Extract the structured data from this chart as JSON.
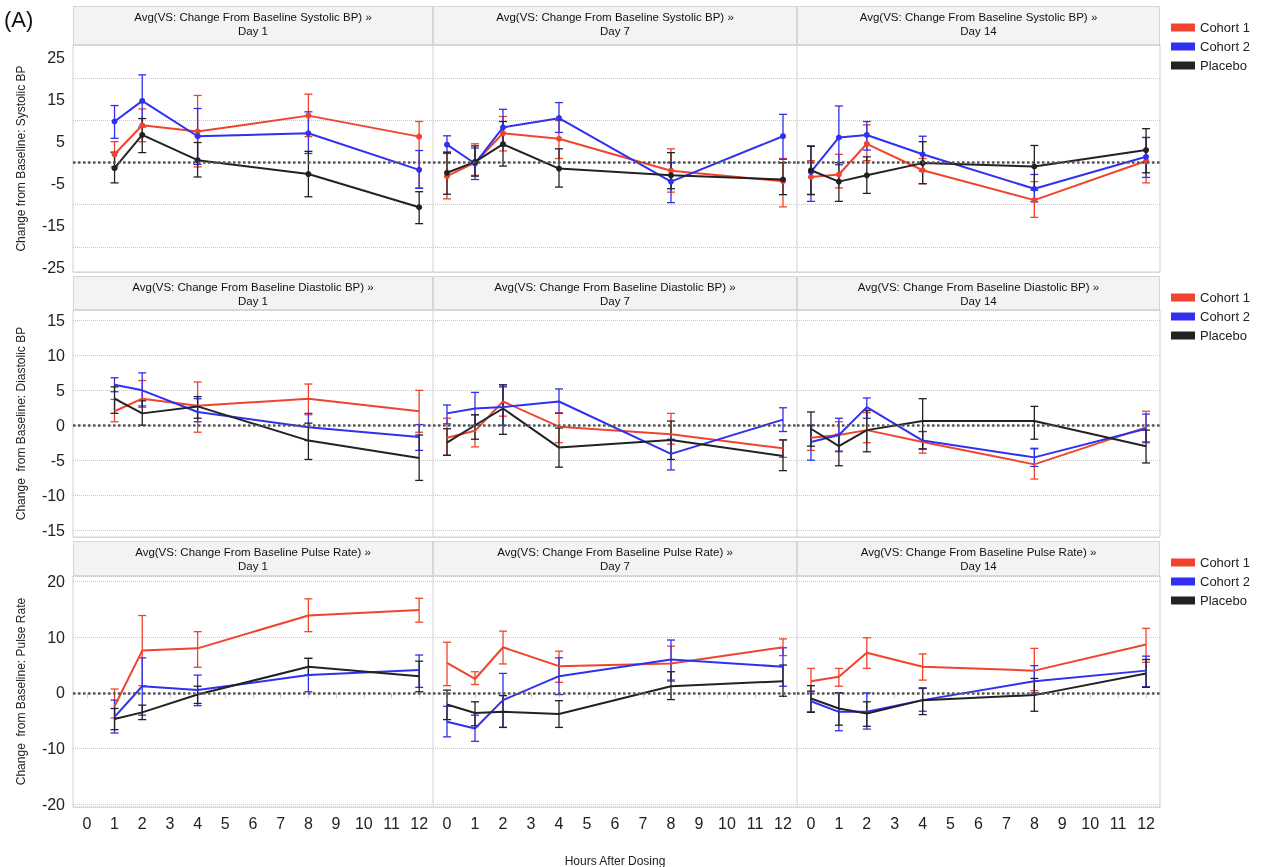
{
  "chart_data": [
    {
      "type": "line",
      "title": "Avg(VS: Change From Baseline Systolic BP) »",
      "subtitle": "Day 1",
      "ylabel": "Change from Baseline: Systolic BP",
      "annotations": [
        "(A)"
      ],
      "x": [
        1,
        2,
        4,
        8,
        12
      ],
      "xlim": [
        -0.5,
        12.5
      ],
      "xticks": [
        0,
        1,
        2,
        3,
        4,
        5,
        6,
        7,
        8,
        9,
        10,
        11,
        12
      ],
      "ylim": [
        -26,
        28
      ],
      "yticks": [
        -25,
        -15,
        -5,
        5,
        15,
        25
      ],
      "grid": "y",
      "marker": "circle",
      "tick_labels": "y",
      "legend": false,
      "ref_lines": [
        {
          "axis": "y",
          "value": 0,
          "line_style": "dotted",
          "color": "#555555"
        }
      ],
      "series": [
        {
          "color": "#f0442c",
          "values": [
            2,
            8.9,
            7.4,
            11.2,
            6.2
          ],
          "errors": [
            [
              -1,
              5
            ],
            [
              5,
              12.8
            ],
            [
              -1,
              16
            ],
            [
              6.2,
              16.3
            ],
            [
              -6,
              9.8
            ]
          ]
        },
        {
          "color": "#3030f0",
          "values": [
            9.8,
            14.7,
            6.3,
            7.0,
            -1.7
          ],
          "errors": [
            [
              5.8,
              13.6
            ],
            [
              8.5,
              20.9
            ],
            [
              -0.4,
              12.9
            ],
            [
              2.2,
              12.1
            ],
            [
              -6.1,
              2.9
            ]
          ]
        },
        {
          "color": "#222222",
          "values": [
            -1.3,
            6.6,
            0.6,
            -2.7,
            -10.6
          ],
          "errors": [
            [
              -4.8,
              2.5
            ],
            [
              2.4,
              10.5
            ],
            [
              -3.4,
              4.8
            ],
            [
              -8.1,
              2.7
            ],
            [
              -14.5,
              -6.9
            ]
          ]
        }
      ]
    },
    {
      "type": "line",
      "title": "Avg(VS: Change From Baseline Systolic BP) »",
      "subtitle": "Day 7",
      "x": [
        0,
        1,
        2,
        4,
        8,
        12
      ],
      "xlim": [
        -0.5,
        12.5
      ],
      "xticks": [
        0,
        1,
        2,
        3,
        4,
        5,
        6,
        7,
        8,
        9,
        10,
        11,
        12
      ],
      "ylim": [
        -26,
        28
      ],
      "yticks": [
        -25,
        -15,
        -5,
        5,
        15,
        25
      ],
      "grid": "y",
      "marker": "circle",
      "tick_labels": false,
      "legend": false,
      "ref_lines": [
        {
          "axis": "y",
          "value": 0,
          "line_style": "dotted",
          "color": "#555555"
        }
      ],
      "series": [
        {
          "color": "#f0442c",
          "values": [
            -3.2,
            0,
            7.0,
            5.7,
            -1.9,
            -4.4
          ],
          "errors": [
            [
              -8.6,
              2.5
            ],
            [
              -3,
              4.5
            ],
            [
              2.8,
              11
            ],
            [
              1,
              10
            ],
            [
              -7.0,
              3.3
            ],
            [
              -10.5,
              1
            ]
          ]
        },
        {
          "color": "#3030f0",
          "values": [
            4.3,
            -0.2,
            8.4,
            10.6,
            -4.5,
            6.3
          ],
          "errors": [
            [
              2.2,
              6.4
            ],
            [
              -4,
              3.5
            ],
            [
              4,
              12.7
            ],
            [
              7.2,
              14.3
            ],
            [
              -9.5,
              0
            ],
            [
              0.8,
              11.5
            ]
          ]
        },
        {
          "color": "#222222",
          "values": [
            -2.4,
            0.2,
            4.4,
            -1.4,
            -3,
            -4
          ],
          "errors": [
            [
              -7.5,
              2.5
            ],
            [
              -3.2,
              4
            ],
            [
              -0.8,
              9.8
            ],
            [
              -5.8,
              3.3
            ],
            [
              -6.2,
              2.4
            ],
            [
              -7.6,
              0
            ]
          ]
        }
      ]
    },
    {
      "type": "line",
      "title": "Avg(VS: Change From Baseline Systolic BP) »",
      "subtitle": "Day 14",
      "x": [
        0,
        1,
        2,
        4,
        8,
        12
      ],
      "xlim": [
        -0.5,
        12.5
      ],
      "xticks": [
        0,
        1,
        2,
        3,
        4,
        5,
        6,
        7,
        8,
        9,
        10,
        11,
        12
      ],
      "ylim": [
        -26,
        28
      ],
      "yticks": [
        -25,
        -15,
        -5,
        5,
        15,
        25
      ],
      "grid": "y",
      "marker": "circle",
      "tick_labels": false,
      "legend": "right",
      "ref_lines": [
        {
          "axis": "y",
          "value": 0,
          "line_style": "dotted",
          "color": "#555555"
        }
      ],
      "series": [
        {
          "name": "Cohort 1",
          "color": "#f0442c",
          "values": [
            -3.4,
            -2.8,
            4.5,
            -1.8,
            -8.9,
            0.4
          ],
          "errors": [
            [
              -7.5,
              0.5
            ],
            [
              -6,
              2
            ],
            [
              0.5,
              9
            ],
            [
              -5,
              1
            ],
            [
              -13,
              -4.5
            ],
            [
              -4.8,
              6
            ]
          ]
        },
        {
          "name": "Cohort 2",
          "color": "#3030f0",
          "values": [
            -2.2,
            6,
            6.6,
            2,
            -6.2,
            1.4
          ],
          "errors": [
            [
              -9.2,
              4
            ],
            [
              -0.5,
              13.5
            ],
            [
              3,
              9.8
            ],
            [
              -2,
              6.3
            ],
            [
              -9.3,
              -2.8
            ],
            [
              -3.5,
              6
            ]
          ]
        },
        {
          "name": "Placebo",
          "color": "#222222",
          "values": [
            -1.8,
            -4.5,
            -3,
            -0.1,
            -0.9,
            3
          ],
          "errors": [
            [
              -7.6,
              3.9
            ],
            [
              -9.2,
              0
            ],
            [
              -7.3,
              1.4
            ],
            [
              -5,
              5
            ],
            [
              -6.5,
              4.1
            ],
            [
              -2.4,
              8.1
            ]
          ]
        }
      ]
    },
    {
      "type": "line",
      "title": "Avg(VS: Change From Baseline Diastolic BP) »",
      "subtitle": "Day 1",
      "ylabel": "Change  from Baseline: Diastolic BP",
      "x": [
        1,
        2,
        4,
        8,
        12
      ],
      "xlim": [
        -0.5,
        12.5
      ],
      "xticks": [
        0,
        1,
        2,
        3,
        4,
        5,
        6,
        7,
        8,
        9,
        10,
        11,
        12
      ],
      "ylim": [
        -16,
        16.5
      ],
      "yticks": [
        -15,
        -10,
        -5,
        0,
        5,
        10,
        15
      ],
      "grid": "y",
      "marker": "none",
      "tick_labels": "y",
      "legend": false,
      "ref_lines": [
        {
          "axis": "y",
          "value": 0,
          "line_style": "dotted",
          "color": "#555555"
        }
      ],
      "series": [
        {
          "color": "#f0442c",
          "values": [
            2.0,
            3.8,
            2.8,
            3.8,
            2
          ],
          "errors": [
            [
              0.5,
              3.7
            ],
            [
              2.8,
              6.4
            ],
            [
              -1,
              6.2
            ],
            [
              1.5,
              5.9
            ],
            [
              -1,
              5
            ]
          ]
        },
        {
          "color": "#3030f0",
          "values": [
            5.8,
            5,
            1.9,
            -0.3,
            -1.7
          ],
          "errors": [
            [
              4.8,
              6.8
            ],
            [
              2.6,
              7.5
            ],
            [
              0.5,
              3.8
            ],
            [
              -2.2,
              1.7
            ],
            [
              -3.6,
              0.1
            ]
          ]
        },
        {
          "color": "#222222",
          "values": [
            3.8,
            1.7,
            2.7,
            -2.2,
            -4.7
          ],
          "errors": [
            [
              1.7,
              5.5
            ],
            [
              0,
              3.5
            ],
            [
              1,
              4.1
            ],
            [
              -4.9,
              0.3
            ],
            [
              -7.9,
              -1.4
            ]
          ]
        }
      ]
    },
    {
      "type": "line",
      "title": "Avg(VS: Change From Baseline Diastolic BP) »",
      "subtitle": "Day 7",
      "x": [
        0,
        1,
        2,
        4,
        8,
        12
      ],
      "xlim": [
        -0.5,
        12.5
      ],
      "xticks": [
        0,
        1,
        2,
        3,
        4,
        5,
        6,
        7,
        8,
        9,
        10,
        11,
        12
      ],
      "ylim": [
        -16,
        16.5
      ],
      "yticks": [
        -15,
        -10,
        -5,
        0,
        5,
        10,
        15
      ],
      "grid": "y",
      "marker": "none",
      "tick_labels": false,
      "legend": false,
      "ref_lines": [
        {
          "axis": "y",
          "value": 0,
          "line_style": "dotted",
          "color": "#555555"
        }
      ],
      "series": [
        {
          "color": "#f0442c",
          "values": [
            -1.8,
            -0.8,
            3.4,
            -0.2,
            -1.3,
            -3.3
          ],
          "errors": [
            [
              -4.3,
              1
            ],
            [
              -3.1,
              1.5
            ],
            [
              1.3,
              5.6
            ],
            [
              -2.5,
              1.8
            ],
            [
              -2.7,
              1.7
            ],
            [
              -4.6,
              -2.1
            ]
          ]
        },
        {
          "color": "#3030f0",
          "values": [
            1.7,
            2.4,
            2.6,
            3.4,
            -4.1,
            0.8
          ],
          "errors": [
            [
              0.2,
              2.9
            ],
            [
              0,
              4.7
            ],
            [
              0,
              5.5
            ],
            [
              1.7,
              5.2
            ],
            [
              -6.4,
              -2.0
            ],
            [
              -0.9,
              2.5
            ]
          ]
        },
        {
          "color": "#222222",
          "values": [
            -2.5,
            0,
            2.4,
            -3.2,
            -2.1,
            -4.4
          ],
          "errors": [
            [
              -4.3,
              -0.5
            ],
            [
              -2,
              1.5
            ],
            [
              -1.3,
              5.8
            ],
            [
              -6,
              -0.4
            ],
            [
              -4.9,
              0.6
            ],
            [
              -6.5,
              -2.1
            ]
          ]
        }
      ]
    },
    {
      "type": "line",
      "title": "Avg(VS: Change From Baseline Diastolic BP) »",
      "subtitle": "Day 14",
      "x": [
        0,
        1,
        2,
        4,
        8,
        12
      ],
      "xlim": [
        -0.5,
        12.5
      ],
      "xticks": [
        0,
        1,
        2,
        3,
        4,
        5,
        6,
        7,
        8,
        9,
        10,
        11,
        12
      ],
      "ylim": [
        -16,
        16.5
      ],
      "yticks": [
        -15,
        -10,
        -5,
        0,
        5,
        10,
        15
      ],
      "grid": "y",
      "marker": "none",
      "tick_labels": false,
      "legend": "right",
      "ref_lines": [
        {
          "axis": "y",
          "value": 0,
          "line_style": "dotted",
          "color": "#555555"
        }
      ],
      "series": [
        {
          "name": "Cohort 1",
          "color": "#f0442c",
          "values": [
            -1.8,
            -1.4,
            -0.7,
            -2.4,
            -5.6,
            -0.3
          ],
          "errors": [
            [
              -3.6,
              0
            ],
            [
              -3.8,
              0.5
            ],
            [
              -2.5,
              1.8
            ],
            [
              -4.0,
              -0.9
            ],
            [
              -7.7,
              -3.4
            ],
            [
              -2.5,
              2.0
            ]
          ]
        },
        {
          "name": "Cohort 2",
          "color": "#3030f0",
          "values": [
            -2.4,
            -1.4,
            2.6,
            -2.2,
            -4.6,
            -0.5
          ],
          "errors": [
            [
              -5,
              0
            ],
            [
              -3.7,
              1
            ],
            [
              1.0,
              3.9
            ],
            [
              -3.4,
              -0.9
            ],
            [
              -5.9,
              -3.3
            ],
            [
              -2.4,
              1.6
            ]
          ]
        },
        {
          "name": "Placebo",
          "color": "#222222",
          "values": [
            -0.5,
            -3,
            -0.7,
            0.6,
            0.6,
            -3
          ],
          "errors": [
            [
              -3.0,
              1.9
            ],
            [
              -5.8,
              -1.3
            ],
            [
              -3.8,
              2.1
            ],
            [
              -3.4,
              3.8
            ],
            [
              -2,
              2.7
            ],
            [
              -5.4,
              -0.7
            ]
          ]
        }
      ]
    },
    {
      "type": "line",
      "title": "Avg(VS: Change From Baseline Pulse Rate) »",
      "subtitle": "Day 1",
      "ylabel": "Change  from Baseline: Pulse Rate",
      "x": [
        1,
        2,
        4,
        8,
        12
      ],
      "xlim": [
        -0.5,
        12.5
      ],
      "xticks": [
        0,
        1,
        2,
        3,
        4,
        5,
        6,
        7,
        8,
        9,
        10,
        11,
        12
      ],
      "ylim": [
        -20.5,
        21
      ],
      "yticks": [
        -20,
        -10,
        0,
        10,
        20
      ],
      "grid": "y",
      "marker": "none",
      "legend": false,
      "ref_lines": [
        {
          "axis": "y",
          "value": 0,
          "line_style": "dotted",
          "color": "#555555"
        }
      ],
      "series": [
        {
          "color": "#f0442c",
          "values": [
            -2.4,
            7.6,
            8,
            13.9,
            14.9
          ],
          "errors": [
            [
              -4.5,
              0.7
            ],
            [
              1.3,
              13.9
            ],
            [
              4.6,
              11
            ],
            [
              11,
              16.9
            ],
            [
              12.7,
              17
            ]
          ]
        },
        {
          "color": "#3030f0",
          "values": [
            -4.3,
            1.2,
            0.5,
            3.2,
            4.1
          ],
          "errors": [
            [
              -7.2,
              -1.3
            ],
            [
              -4,
              6.3
            ],
            [
              -2.3,
              3.2
            ],
            [
              0.2,
              6.2
            ],
            [
              1,
              6.8
            ]
          ]
        },
        {
          "color": "#222222",
          "values": [
            -4.7,
            -3.5,
            -0.3,
            4.7,
            3
          ],
          "errors": [
            [
              -6.6,
              -2.8
            ],
            [
              -4.8,
              -2.2
            ],
            [
              -1.9,
              1.2
            ],
            [
              3.2,
              6.2
            ],
            [
              0.2,
              5.7
            ]
          ]
        }
      ]
    },
    {
      "type": "line",
      "title": "Avg(VS: Change From Baseline Pulse Rate) »",
      "subtitle": "Day 7",
      "xlabel": "Hours After Dosing",
      "x": [
        0,
        1,
        2,
        4,
        8,
        12
      ],
      "xlim": [
        -0.5,
        12.5
      ],
      "xticks": [
        0,
        1,
        2,
        3,
        4,
        5,
        6,
        7,
        8,
        9,
        10,
        11,
        12
      ],
      "ylim": [
        -20.5,
        21
      ],
      "yticks": [
        -20,
        -10,
        0,
        10,
        20
      ],
      "grid": "y",
      "marker": "none",
      "tick_labels": "x",
      "legend": false,
      "ref_lines": [
        {
          "axis": "y",
          "value": 0,
          "line_style": "dotted",
          "color": "#555555"
        }
      ],
      "series": [
        {
          "color": "#f0442c",
          "values": [
            5.4,
            2.5,
            8.2,
            4.8,
            5.3,
            8.2
          ],
          "errors": [
            [
              1.3,
              9.1
            ],
            [
              1.5,
              3.8
            ],
            [
              5.2,
              11.1
            ],
            [
              1.9,
              7.5
            ],
            [
              2.1,
              8.4
            ],
            [
              6.7,
              9.7
            ]
          ]
        },
        {
          "color": "#3030f0",
          "values": [
            -5.2,
            -6.4,
            -1.3,
            3,
            6,
            4.7
          ],
          "errors": [
            [
              -7.9,
              -2.4
            ],
            [
              -8.7,
              -4
            ],
            [
              -6.2,
              3.5
            ],
            [
              -0.3,
              6.3
            ],
            [
              2.3,
              9.5
            ],
            [
              1.2,
              8.1
            ]
          ]
        },
        {
          "color": "#222222",
          "values": [
            -2.1,
            -3.6,
            -3.4,
            -3.8,
            1.2,
            2.1
          ],
          "errors": [
            [
              -4.8,
              0.5
            ],
            [
              -5.9,
              -1.6
            ],
            [
              -6.2,
              -0.5
            ],
            [
              -6.2,
              -1.4
            ],
            [
              -1.2,
              3.8
            ],
            [
              -0.6,
              5.0
            ]
          ]
        }
      ]
    },
    {
      "type": "line",
      "title": "Avg(VS: Change From Baseline Pulse Rate) »",
      "subtitle": "Day 14",
      "x": [
        0,
        1,
        2,
        4,
        8,
        12
      ],
      "xlim": [
        -0.5,
        12.5
      ],
      "xticks": [
        0,
        1,
        2,
        3,
        4,
        5,
        6,
        7,
        8,
        9,
        10,
        11,
        12
      ],
      "ylim": [
        -20.5,
        21
      ],
      "yticks": [
        -20,
        -10,
        0,
        10,
        20
      ],
      "grid": "y",
      "marker": "none",
      "tick_labels": "x",
      "legend": "right",
      "ref_lines": [
        {
          "axis": "y",
          "value": 0,
          "line_style": "dotted",
          "color": "#555555"
        }
      ],
      "series": [
        {
          "name": "Cohort 1",
          "color": "#f0442c",
          "values": [
            2.1,
            2.9,
            7.2,
            4.7,
            4,
            8.7
          ],
          "errors": [
            [
              0.3,
              4.4
            ],
            [
              1.2,
              4.4
            ],
            [
              4.4,
              9.9
            ],
            [
              2.3,
              7.0
            ],
            [
              0.4,
              8.0
            ],
            [
              5.5,
              11.6
            ]
          ]
        },
        {
          "name": "Cohort 2",
          "color": "#3030f0",
          "values": [
            -1.5,
            -3.4,
            -3.4,
            -1.3,
            2.1,
            4
          ],
          "errors": [
            [
              -3.4,
              0.3
            ],
            [
              -6.8,
              0
            ],
            [
              -6.5,
              0
            ],
            [
              -3.3,
              0.8
            ],
            [
              0,
              4.9
            ],
            [
              1.1,
              6.6
            ]
          ]
        },
        {
          "name": "Placebo",
          "color": "#222222",
          "values": [
            -1,
            -2.8,
            -3.7,
            -1.3,
            -0.4,
            3.5
          ],
          "errors": [
            [
              -3.5,
              1.3
            ],
            [
              -5.8,
              0
            ],
            [
              -6,
              -1.6
            ],
            [
              -3.9,
              0.9
            ],
            [
              -3.3,
              2.6
            ],
            [
              1,
              6
            ]
          ]
        }
      ]
    }
  ]
}
